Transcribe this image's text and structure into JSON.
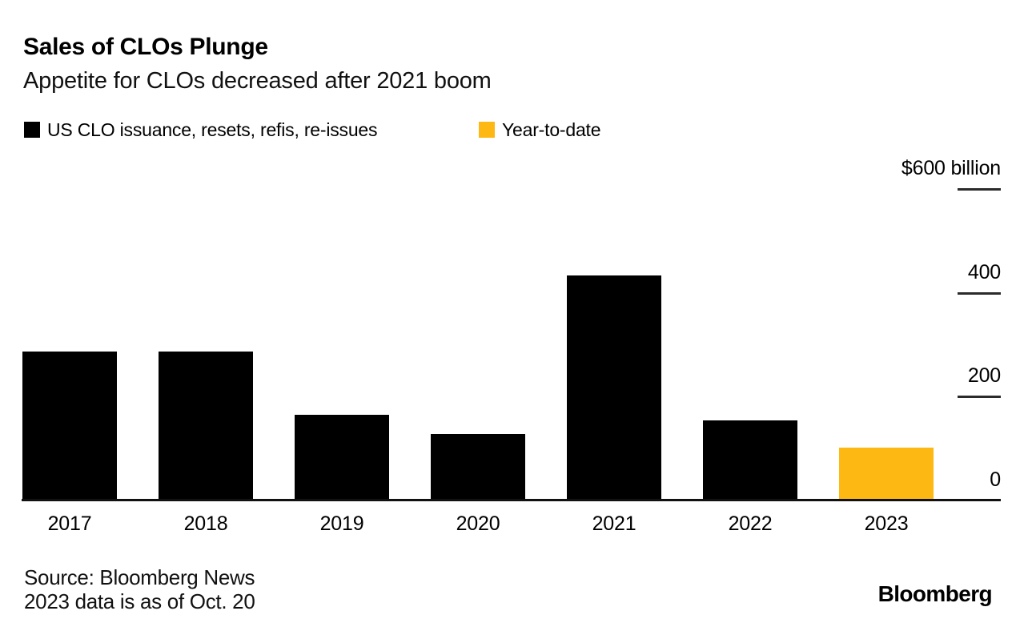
{
  "chart_data": {
    "type": "bar",
    "title": "Sales of CLOs Plunge",
    "subtitle": "Appetite for CLOs decreased after 2021 boom",
    "categories": [
      "2017",
      "2018",
      "2019",
      "2020",
      "2021",
      "2022",
      "2023"
    ],
    "values": [
      287,
      287,
      165,
      128,
      434,
      154,
      102
    ],
    "unit": "billions of US dollars",
    "series": [
      {
        "name": "US CLO issuance, resets, refis, re-issues",
        "color": "#000000"
      }
    ],
    "highlight": {
      "category": "2023",
      "label": "Year-to-date",
      "color": "#fdb813"
    },
    "yticks": [
      {
        "value": 600,
        "label": "$600 billion"
      },
      {
        "value": 400,
        "label": "400"
      },
      {
        "value": 200,
        "label": "200"
      },
      {
        "value": 0,
        "label": "0"
      }
    ],
    "ylim": [
      0,
      600
    ],
    "legend_position": "top-left",
    "axis_side": "right",
    "grid": "short right-side tick dashes, solid black zero baseline"
  },
  "footer": {
    "source_line1": "Source: Bloomberg News",
    "source_line2": "2023 data is as of Oct. 20",
    "logo": "Bloomberg"
  }
}
